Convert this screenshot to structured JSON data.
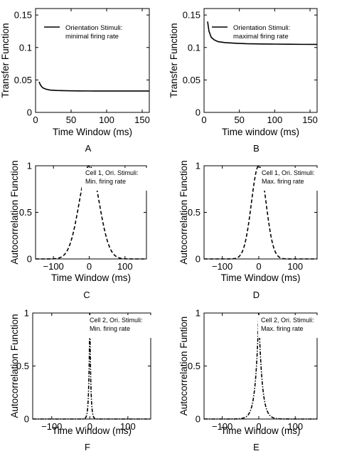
{
  "chart_data": [
    {
      "id": "A",
      "type": "line",
      "panel_label": "A",
      "xlabel": "Time Window (ms)",
      "ylabel": "Transfer Function",
      "xlim": [
        0,
        160
      ],
      "ylim": [
        0,
        0.16
      ],
      "xticks": [
        0,
        50,
        100,
        150
      ],
      "xtick_labels": [
        "0",
        "50",
        "100",
        "150"
      ],
      "yticks": [
        0,
        0.05,
        0.1,
        0.15
      ],
      "ytick_labels": [
        "0",
        "0.05",
        "0.1",
        "0.15"
      ],
      "legend_position": "top-right",
      "series": [
        {
          "name": "Orientation Stimuli: minimal firing rate",
          "style": "solid",
          "color": "#000000",
          "x": [
            5,
            7,
            10,
            14,
            20,
            30,
            45,
            60,
            80,
            100,
            120,
            140,
            160
          ],
          "y": [
            0.047,
            0.042,
            0.038,
            0.036,
            0.0345,
            0.0338,
            0.0333,
            0.0331,
            0.033,
            0.033,
            0.033,
            0.033,
            0.033
          ]
        }
      ],
      "legend_lines": [
        "Orientation Stimuli:",
        "minimal firing rate"
      ]
    },
    {
      "id": "B",
      "type": "line",
      "panel_label": "B",
      "xlabel": "Time window (ms)",
      "ylabel": "Transfer Function",
      "xlim": [
        0,
        160
      ],
      "ylim": [
        0,
        0.16
      ],
      "xticks": [
        0,
        50,
        100,
        150
      ],
      "xtick_labels": [
        "0",
        "50",
        "100",
        "150"
      ],
      "yticks": [
        0,
        0.05,
        0.1,
        0.15
      ],
      "ytick_labels": [
        "0",
        "0.05",
        "0.1",
        "0.15"
      ],
      "legend_position": "top-right",
      "series": [
        {
          "name": "Orientation Stimuli: maximal firing rate",
          "style": "solid",
          "color": "#000000",
          "x": [
            5,
            7,
            10,
            14,
            20,
            30,
            45,
            60,
            80,
            100,
            120,
            140,
            160
          ],
          "y": [
            0.14,
            0.125,
            0.116,
            0.112,
            0.109,
            0.1075,
            0.1065,
            0.1058,
            0.1054,
            0.1052,
            0.105,
            0.1048,
            0.1047
          ]
        }
      ],
      "legend_lines": [
        "Orientation Stimuli:",
        "maximal firing rate"
      ]
    },
    {
      "id": "C",
      "type": "line",
      "panel_label": "C",
      "xlabel": "Time Window (ms)",
      "ylabel": "Autocorrelation Function",
      "xlim": [
        -150,
        160
      ],
      "ylim": [
        0,
        1
      ],
      "xticks": [
        -100,
        0,
        100
      ],
      "xtick_labels": [
        "−100",
        "0",
        "100"
      ],
      "yticks": [
        0,
        0.5,
        1
      ],
      "ytick_labels": [
        "0",
        "0.5",
        "1"
      ],
      "legend_position": "top-right",
      "series": [
        {
          "name": "Cell 1, Ori. Stimuli: Min. firing rate",
          "style": "dashed",
          "color": "#000000",
          "shape": "gaussian",
          "center": 0,
          "sigma": 28
        }
      ],
      "legend_lines": [
        "Cell 1, Ori. Stimuli:",
        "Min. firing rate"
      ]
    },
    {
      "id": "D",
      "type": "line",
      "panel_label": "D",
      "xlabel": "Time Window (ms)",
      "ylabel": "Autocorrelation Function",
      "xlim": [
        -150,
        160
      ],
      "ylim": [
        0,
        1
      ],
      "xticks": [
        -100,
        0,
        100
      ],
      "xtick_labels": [
        "−100",
        "0",
        "100"
      ],
      "yticks": [
        0,
        0.5,
        1
      ],
      "ytick_labels": [
        "0",
        "0.5",
        "1"
      ],
      "legend_position": "top-right",
      "series": [
        {
          "name": "Cell 1, Ori. Stimuli: Max. firing rate",
          "style": "dashed",
          "color": "#000000",
          "shape": "gaussian",
          "center": 0,
          "sigma": 20
        }
      ],
      "legend_lines": [
        "Cell 1, Ori. Stimuli:",
        "Max. firing rate"
      ]
    },
    {
      "id": "F",
      "type": "line",
      "panel_label": "F",
      "xlabel": "Time Window (ms)",
      "ylabel": "Autocorrelation Function",
      "xlim": [
        -150,
        160
      ],
      "ylim": [
        0,
        1
      ],
      "xticks": [
        -100,
        0,
        100
      ],
      "xtick_labels": [
        "−100",
        "0",
        "100"
      ],
      "yticks": [
        0,
        0.5,
        1
      ],
      "ytick_labels": [
        "0",
        "0.5",
        "1"
      ],
      "legend_position": "top-right",
      "series": [
        {
          "name": "Cell 2, Ori. Stimuli: Min. firing rate",
          "style": "dash-dot",
          "color": "#000000",
          "shape": "exponential",
          "center": 0,
          "tau": 2.5
        }
      ],
      "legend_lines": [
        "Cell 2, Ori. Stimuli:",
        "Min. firing rate"
      ]
    },
    {
      "id": "E",
      "type": "line",
      "panel_label": "E",
      "xlabel": "Time Window (ms)",
      "ylabel": "Autocorrelation Funtion",
      "xlim": [
        -150,
        160
      ],
      "ylim": [
        0,
        1
      ],
      "xticks": [
        -100,
        0,
        100
      ],
      "xtick_labels": [
        "−100",
        "0",
        "100"
      ],
      "yticks": [
        0,
        0.5,
        1
      ],
      "ytick_labels": [
        "0",
        "0.5",
        "1"
      ],
      "legend_position": "top-right",
      "series": [
        {
          "name": "Cell 2, Ori. Stimuli: Max. firing rate",
          "style": "dash-dot",
          "color": "#000000",
          "shape": "exponential",
          "center": 0,
          "tau": 9
        }
      ],
      "legend_lines": [
        "Cell 2, Ori. Stimuli:",
        "Max. firing rate"
      ]
    }
  ]
}
